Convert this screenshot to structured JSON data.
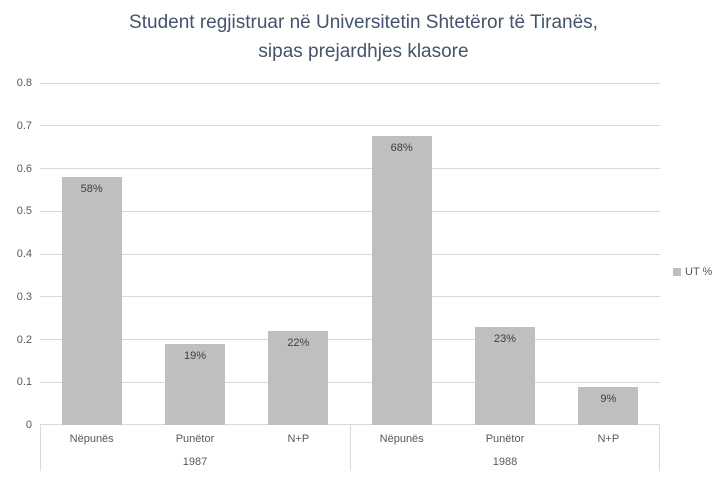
{
  "title": {
    "line1": "Student regjistruar në Universitetin Shtetëror të Tiranës,",
    "line2": "sipas prejardhjes klasore"
  },
  "legend": {
    "label": "UT %"
  },
  "colors": {
    "background": "#FFFFFF",
    "bar": "#BFBFBF",
    "gridline": "#D9D9D9",
    "axis_line": "#D9D9D9",
    "title_text": "#44546A",
    "axis_text": "#595959",
    "data_label": "#404040"
  },
  "chart_data": {
    "type": "bar",
    "title": "Student regjistruar në Universitetin Shtetëror të Tiranës, sipas prejardhjes klasore",
    "series": [
      {
        "name": "UT %",
        "values": [
          0.58,
          0.19,
          0.22,
          0.675,
          0.23,
          0.09
        ],
        "labels": [
          "58%",
          "19%",
          "22%",
          "68%",
          "23%",
          "9%"
        ]
      }
    ],
    "categories": [
      "Nëpunës",
      "Punëtor",
      "N+P",
      "Nëpunës",
      "Punëtor",
      "N+P"
    ],
    "group_labels": [
      "1987",
      "1988"
    ],
    "categories_per_group": 3,
    "xlabel": "",
    "ylabel": "",
    "ylim": [
      0,
      0.8
    ],
    "yticks": [
      0,
      0.1,
      0.2,
      0.3,
      0.4,
      0.5,
      0.6,
      0.7,
      0.8
    ],
    "grid": true,
    "legend_position": "right"
  }
}
